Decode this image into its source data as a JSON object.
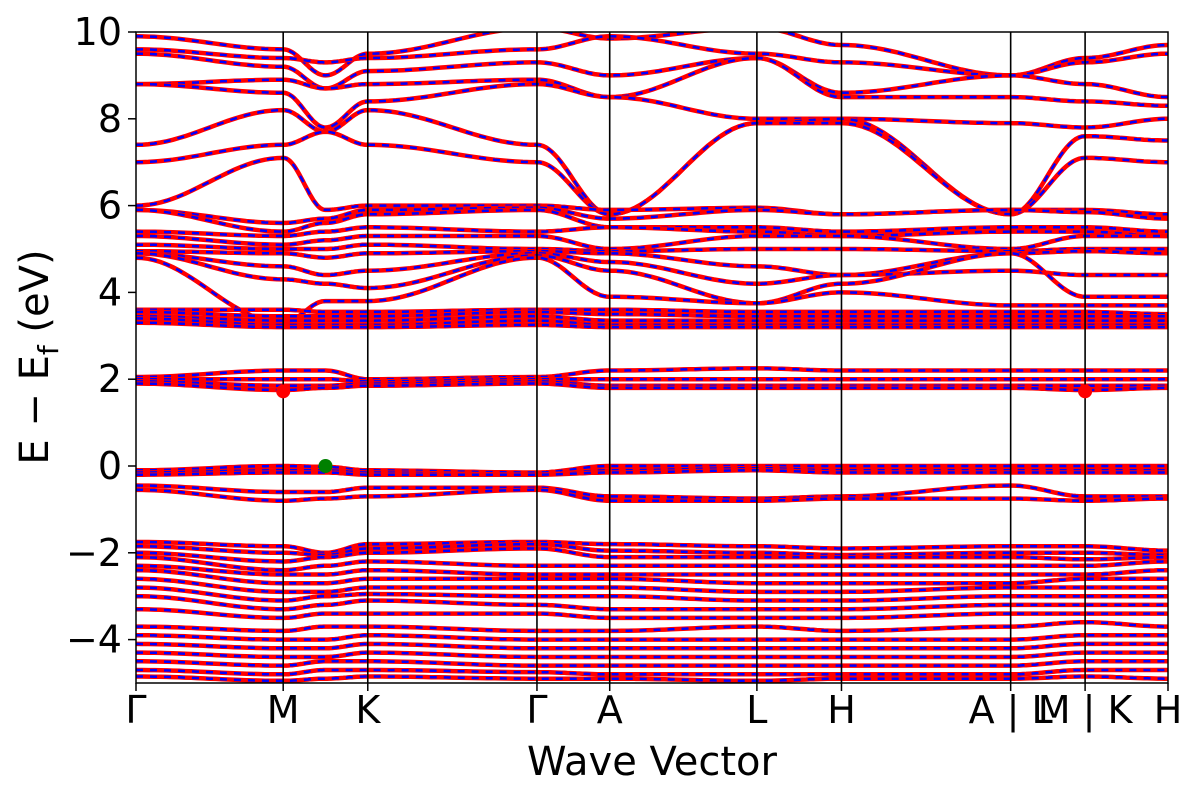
{
  "chart_data": {
    "type": "line",
    "title": "",
    "xlabel": "Wave Vector",
    "ylabel": "E − E_f (eV)",
    "ylabel_parts": {
      "main": "E − E",
      "sub": "f",
      "unit": " (eV)"
    },
    "ylim": [
      -5,
      10
    ],
    "yticks": [
      -4,
      -2,
      0,
      2,
      4,
      6,
      8,
      10
    ],
    "ytick_labels": [
      "−4",
      "−2",
      "0",
      "2",
      "4",
      "6",
      "8",
      "10"
    ],
    "xlim": [
      0,
      12.2
    ],
    "kpoints": [
      {
        "label": "Γ",
        "x": 0
      },
      {
        "label": "M",
        "x": 1.74
      },
      {
        "label": "K",
        "x": 2.74
      },
      {
        "label": "Γ",
        "x": 4.74
      },
      {
        "label": "A",
        "x": 5.6
      },
      {
        "label": "L",
        "x": 7.34
      },
      {
        "label": "H",
        "x": 8.34
      },
      {
        "label": "A | L",
        "x": 10.34
      },
      {
        "label": "M | K",
        "x": 11.22
      },
      {
        "label": "H",
        "x": 12.2
      }
    ],
    "segment_breaks": [
      0,
      1.74,
      2.74,
      4.74,
      5.6,
      7.34,
      8.34,
      10.34,
      11.22,
      12.2
    ],
    "grid": false,
    "series_styles": [
      {
        "color": "#ff0000",
        "style": "solid"
      },
      {
        "color": "#0000ff",
        "style": "dashed"
      }
    ],
    "band_anchor_energies": [
      [
        9.9,
        9.6,
        9.0,
        9.5,
        10.1,
        9.85,
        10.1,
        9.7,
        9.0,
        9.4,
        9.7
      ],
      [
        9.6,
        9.4,
        9.3,
        9.4,
        9.6,
        9.9,
        9.5,
        9.3,
        9.0,
        9.3,
        9.5
      ],
      [
        9.5,
        9.2,
        8.7,
        9.1,
        9.3,
        9.0,
        9.4,
        8.6,
        9.0,
        8.8,
        8.5
      ],
      [
        8.8,
        8.9,
        8.7,
        8.8,
        8.9,
        8.5,
        9.4,
        8.5,
        8.5,
        8.4,
        8.3
      ],
      [
        8.8,
        8.6,
        7.8,
        8.4,
        8.8,
        8.5,
        8.0,
        8.0,
        7.9,
        7.8,
        8.0
      ],
      [
        7.4,
        8.2,
        7.7,
        8.2,
        7.4,
        5.8,
        7.9,
        8.0,
        5.8,
        7.6,
        7.5
      ],
      [
        7.0,
        7.4,
        7.7,
        7.4,
        7.0,
        5.8,
        7.9,
        7.9,
        5.8,
        7.1,
        7.0
      ],
      [
        6.0,
        7.1,
        5.9,
        6.0,
        6.0,
        5.9,
        5.95,
        5.8,
        5.9,
        5.9,
        5.8
      ],
      [
        5.9,
        5.6,
        5.7,
        5.9,
        5.95,
        5.7,
        5.9,
        5.8,
        5.9,
        5.85,
        5.7
      ],
      [
        5.9,
        5.4,
        5.6,
        5.8,
        5.9,
        5.5,
        5.5,
        5.4,
        5.5,
        5.5,
        5.4
      ],
      [
        5.4,
        5.3,
        5.4,
        5.5,
        5.4,
        5.5,
        5.4,
        5.3,
        5.4,
        5.4,
        5.3
      ],
      [
        5.3,
        5.1,
        5.2,
        5.3,
        5.3,
        5.0,
        5.3,
        5.3,
        5.0,
        5.3,
        5.3
      ],
      [
        5.1,
        5.0,
        5.0,
        5.1,
        5.0,
        4.95,
        5.0,
        5.0,
        4.95,
        5.0,
        5.0
      ],
      [
        4.95,
        4.9,
        4.8,
        4.9,
        4.95,
        4.9,
        4.6,
        4.4,
        4.9,
        4.95,
        4.9
      ],
      [
        4.9,
        4.6,
        4.4,
        4.5,
        4.9,
        4.7,
        4.2,
        4.4,
        4.5,
        4.4,
        4.4
      ],
      [
        4.9,
        4.3,
        4.2,
        4.1,
        4.85,
        4.5,
        3.75,
        4.2,
        4.9,
        3.9,
        3.9
      ],
      [
        4.8,
        3.3,
        3.8,
        3.8,
        4.8,
        3.9,
        3.75,
        4.0,
        3.7,
        3.7,
        3.7
      ],
      [
        3.6,
        3.6,
        3.55,
        3.55,
        3.6,
        3.6,
        3.55,
        3.55,
        3.55,
        3.55,
        3.5
      ],
      [
        3.55,
        3.45,
        3.45,
        3.45,
        3.55,
        3.5,
        3.45,
        3.45,
        3.45,
        3.45,
        3.45
      ],
      [
        3.45,
        3.35,
        3.35,
        3.35,
        3.45,
        3.35,
        3.35,
        3.35,
        3.35,
        3.35,
        3.35
      ],
      [
        3.4,
        3.25,
        3.25,
        3.25,
        3.35,
        3.25,
        3.25,
        3.25,
        3.25,
        3.25,
        3.25
      ],
      [
        3.3,
        3.2,
        3.2,
        3.2,
        3.25,
        3.2,
        3.2,
        3.2,
        3.2,
        3.2,
        3.2
      ],
      [
        2.05,
        2.2,
        2.2,
        2.0,
        2.05,
        2.2,
        2.25,
        2.2,
        2.2,
        2.2,
        2.2
      ],
      [
        2.0,
        2.0,
        2.0,
        1.95,
        2.0,
        2.0,
        2.0,
        2.0,
        2.0,
        2.0,
        2.0
      ],
      [
        1.95,
        1.85,
        1.85,
        1.9,
        1.95,
        1.85,
        1.85,
        1.85,
        1.85,
        1.85,
        1.85
      ],
      [
        1.9,
        1.75,
        1.8,
        1.85,
        1.9,
        1.8,
        1.8,
        1.8,
        1.8,
        1.75,
        1.8
      ],
      [
        -0.1,
        0.0,
        -0.02,
        -0.1,
        -0.15,
        0.0,
        0.0,
        0.0,
        0.0,
        0.0,
        0.0
      ],
      [
        -0.15,
        -0.1,
        -0.1,
        -0.15,
        -0.2,
        -0.1,
        -0.05,
        -0.1,
        -0.1,
        -0.1,
        -0.1
      ],
      [
        -0.2,
        -0.15,
        -0.15,
        -0.2,
        -0.2,
        -0.15,
        -0.1,
        -0.15,
        -0.15,
        -0.15,
        -0.15
      ],
      [
        -0.45,
        -0.6,
        -0.6,
        -0.5,
        -0.5,
        -0.7,
        -0.75,
        -0.7,
        -0.45,
        -0.7,
        -0.7
      ],
      [
        -0.55,
        -0.8,
        -0.75,
        -0.7,
        -0.55,
        -0.8,
        -0.8,
        -0.75,
        -0.75,
        -0.8,
        -0.75
      ],
      [
        -1.75,
        -1.85,
        -2.0,
        -1.8,
        -1.75,
        -1.8,
        -1.85,
        -1.9,
        -1.85,
        -1.85,
        -1.95
      ],
      [
        -1.85,
        -2.0,
        -2.05,
        -1.9,
        -1.8,
        -1.95,
        -2.0,
        -2.05,
        -2.0,
        -2.0,
        -2.05
      ],
      [
        -2.0,
        -2.2,
        -2.1,
        -2.0,
        -1.9,
        -2.1,
        -2.1,
        -2.1,
        -2.1,
        -2.15,
        -2.1
      ],
      [
        -2.1,
        -2.4,
        -2.3,
        -2.2,
        -2.3,
        -2.3,
        -2.3,
        -2.3,
        -2.3,
        -2.3,
        -2.2
      ],
      [
        -2.3,
        -2.5,
        -2.5,
        -2.4,
        -2.5,
        -2.5,
        -2.5,
        -2.5,
        -2.5,
        -2.5,
        -2.4
      ],
      [
        -2.4,
        -2.7,
        -2.7,
        -2.6,
        -2.6,
        -2.6,
        -2.7,
        -2.7,
        -2.7,
        -2.6,
        -2.6
      ],
      [
        -2.6,
        -2.9,
        -2.9,
        -2.8,
        -2.8,
        -2.8,
        -2.9,
        -2.9,
        -2.8,
        -2.8,
        -2.8
      ],
      [
        -2.8,
        -3.1,
        -3.0,
        -2.95,
        -3.0,
        -3.0,
        -3.1,
        -3.1,
        -3.0,
        -3.0,
        -3.0
      ],
      [
        -3.0,
        -3.3,
        -3.2,
        -3.1,
        -3.2,
        -3.3,
        -3.3,
        -3.3,
        -3.2,
        -3.2,
        -3.2
      ],
      [
        -3.3,
        -3.5,
        -3.4,
        -3.4,
        -3.4,
        -3.5,
        -3.5,
        -3.5,
        -3.4,
        -3.4,
        -3.4
      ],
      [
        -3.7,
        -3.8,
        -3.7,
        -3.7,
        -3.8,
        -3.8,
        -3.7,
        -3.8,
        -3.7,
        -3.6,
        -3.7
      ],
      [
        -3.9,
        -4.0,
        -4.0,
        -3.9,
        -4.0,
        -4.0,
        -4.0,
        -4.0,
        -4.0,
        -3.9,
        -3.9
      ],
      [
        -4.1,
        -4.2,
        -4.2,
        -4.1,
        -4.2,
        -4.2,
        -4.2,
        -4.2,
        -4.2,
        -4.1,
        -4.1
      ],
      [
        -4.3,
        -4.4,
        -4.4,
        -4.3,
        -4.4,
        -4.4,
        -4.4,
        -4.4,
        -4.4,
        -4.3,
        -4.3
      ],
      [
        -4.5,
        -4.6,
        -4.5,
        -4.5,
        -4.6,
        -4.6,
        -4.6,
        -4.6,
        -4.6,
        -4.5,
        -4.5
      ],
      [
        -4.7,
        -4.8,
        -4.7,
        -4.7,
        -4.75,
        -4.8,
        -4.8,
        -4.8,
        -4.8,
        -4.7,
        -4.7
      ],
      [
        -4.85,
        -4.95,
        -4.9,
        -4.85,
        -4.9,
        -4.9,
        -4.95,
        -4.9,
        -4.9,
        -4.85,
        -4.9
      ]
    ],
    "markers": [
      {
        "name": "cbm-marker",
        "x": 1.74,
        "y": 1.72,
        "color": "#ff0000"
      },
      {
        "name": "vbm-marker",
        "x": 2.24,
        "y": 0.0,
        "color": "#008000"
      },
      {
        "name": "cbm-marker-2",
        "x": 11.22,
        "y": 1.72,
        "color": "#ff0000"
      }
    ]
  }
}
